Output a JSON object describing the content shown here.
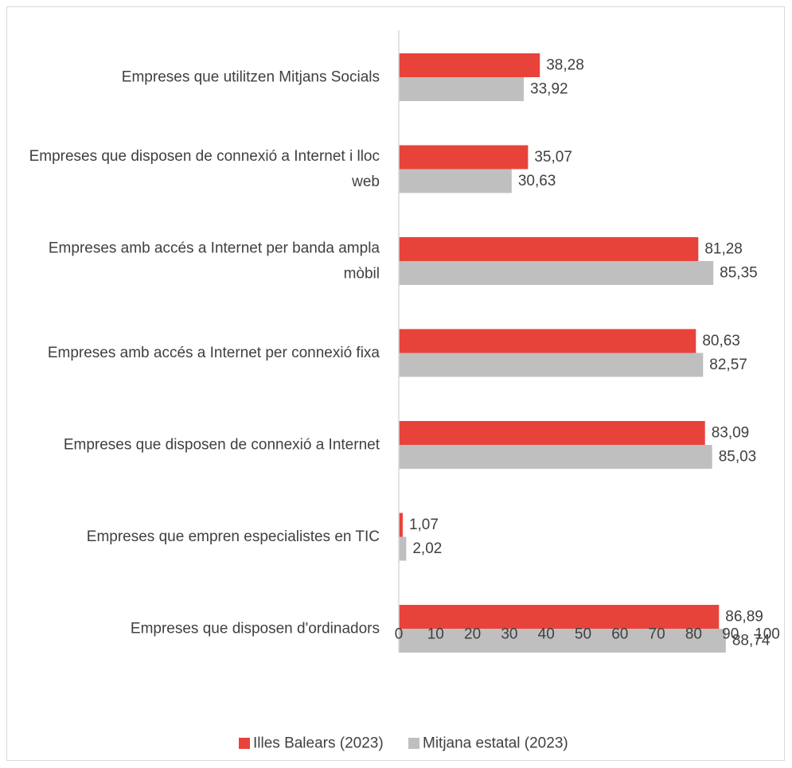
{
  "chart_data": {
    "type": "bar",
    "orientation": "horizontal",
    "categories": [
      [
        "Empreses que utilitzen Mitjans Socials"
      ],
      [
        "Empreses que disposen de connexió a Internet i lloc",
        "web"
      ],
      [
        "Empreses amb accés a Internet per banda ampla",
        "mòbil"
      ],
      [
        "Empreses amb accés a Internet per connexió fixa"
      ],
      [
        "Empreses que disposen de connexió a Internet"
      ],
      [
        "Empreses que empren especialistes en TIC"
      ],
      [
        "Empreses que disposen d'ordinadors"
      ]
    ],
    "series": [
      {
        "name": "Illes Balears (2023)",
        "color": "#e8433a",
        "values": [
          38.28,
          35.07,
          81.28,
          80.63,
          83.09,
          1.07,
          86.89
        ],
        "labels": [
          "38,28",
          "35,07",
          "81,28",
          "80,63",
          "83,09",
          "1,07",
          "86,89"
        ]
      },
      {
        "name": "Mitjana estatal (2023)",
        "color": "#bfbfbf",
        "values": [
          33.92,
          30.63,
          85.35,
          82.57,
          85.03,
          2.02,
          88.74
        ],
        "labels": [
          "33,92",
          "30,63",
          "85,35",
          "82,57",
          "85,03",
          "2,02",
          "88,74"
        ]
      }
    ],
    "x_ticks": [
      "0",
      "10",
      "20",
      "30",
      "40",
      "50",
      "60",
      "70",
      "80",
      "90",
      "100"
    ],
    "xlim": [
      0,
      100
    ],
    "grid": false,
    "legend_position": "bottom",
    "title": "",
    "xlabel": "",
    "ylabel": ""
  }
}
